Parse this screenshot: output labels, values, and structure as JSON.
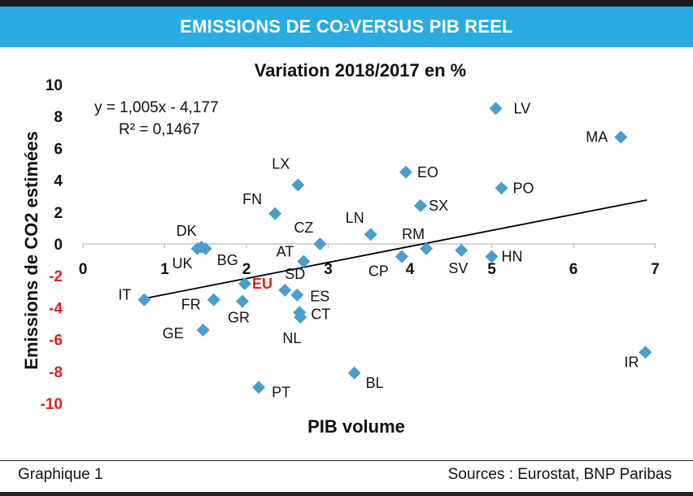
{
  "banner": {
    "title_prefix": "EMISSIONS DE CO",
    "title_sub": "2",
    "title_suffix": " VERSUS PIB REEL"
  },
  "footer": {
    "left": "Graphique 1",
    "right": "Sources : Eurostat, BNP Paribas"
  },
  "colors": {
    "banner": "#29ABE2",
    "marker": "#4A9ECC",
    "highlight": "#E02020",
    "axis": "#BFBFBF",
    "trendline": "#000000"
  },
  "chart_data": {
    "type": "scatter",
    "title": "Variation 2018/2017 en %",
    "xlabel": "PIB volume",
    "ylabel": "Emissions de CO2  estimées",
    "xlim": [
      0,
      7
    ],
    "ylim": [
      -10,
      10
    ],
    "x_ticks": [
      "0",
      "1",
      "2",
      "3",
      "4",
      "5",
      "6",
      "7"
    ],
    "y_ticks": [
      "10",
      "8",
      "6",
      "4",
      "2",
      "0",
      "-2",
      "-4",
      "-6",
      "-8",
      "-10"
    ],
    "trendline": {
      "slope": 1.005,
      "intercept": -4.177,
      "x_range": [
        0.75,
        6.9
      ]
    },
    "equation": "y = 1,005x - 4,177",
    "r_squared": "R² = 0,1467",
    "points": [
      {
        "label": "LV",
        "x": 5.05,
        "y": 8.5
      },
      {
        "label": "MA",
        "x": 6.58,
        "y": 6.7
      },
      {
        "label": "EO",
        "x": 3.95,
        "y": 4.5
      },
      {
        "label": "LX",
        "x": 2.63,
        "y": 3.7
      },
      {
        "label": "PO",
        "x": 5.12,
        "y": 3.5
      },
      {
        "label": "SX",
        "x": 4.13,
        "y": 2.4
      },
      {
        "label": "FN",
        "x": 2.35,
        "y": 1.9
      },
      {
        "label": "LN",
        "x": 3.52,
        "y": 0.6
      },
      {
        "label": "CZ",
        "x": 2.9,
        "y": 0.0
      },
      {
        "label": "DK",
        "x": 1.45,
        "y": -0.2
      },
      {
        "label": "UK",
        "x": 1.4,
        "y": -0.3
      },
      {
        "label": "BG",
        "x": 1.5,
        "y": -0.3
      },
      {
        "label": "RM",
        "x": 4.2,
        "y": -0.3
      },
      {
        "label": "SV",
        "x": 4.63,
        "y": -0.4
      },
      {
        "label": "HN",
        "x": 5.0,
        "y": -0.8
      },
      {
        "label": "CP",
        "x": 3.9,
        "y": -0.8
      },
      {
        "label": "AT",
        "x": 2.7,
        "y": -1.1
      },
      {
        "label": "EU",
        "x": 1.98,
        "y": -2.5,
        "highlight": true
      },
      {
        "label": "SD",
        "x": 2.47,
        "y": -2.9
      },
      {
        "label": "ES",
        "x": 2.62,
        "y": -3.2
      },
      {
        "label": "IT",
        "x": 0.75,
        "y": -3.5
      },
      {
        "label": "FR",
        "x": 1.6,
        "y": -3.5
      },
      {
        "label": "GR",
        "x": 1.95,
        "y": -3.6
      },
      {
        "label": "CT",
        "x": 2.65,
        "y": -4.3
      },
      {
        "label": "NL",
        "x": 2.66,
        "y": -4.6
      },
      {
        "label": "GE",
        "x": 1.47,
        "y": -5.4
      },
      {
        "label": "IR",
        "x": 6.88,
        "y": -6.8
      },
      {
        "label": "BL",
        "x": 3.32,
        "y": -8.1
      },
      {
        "label": "PT",
        "x": 2.15,
        "y": -9.0
      }
    ]
  }
}
